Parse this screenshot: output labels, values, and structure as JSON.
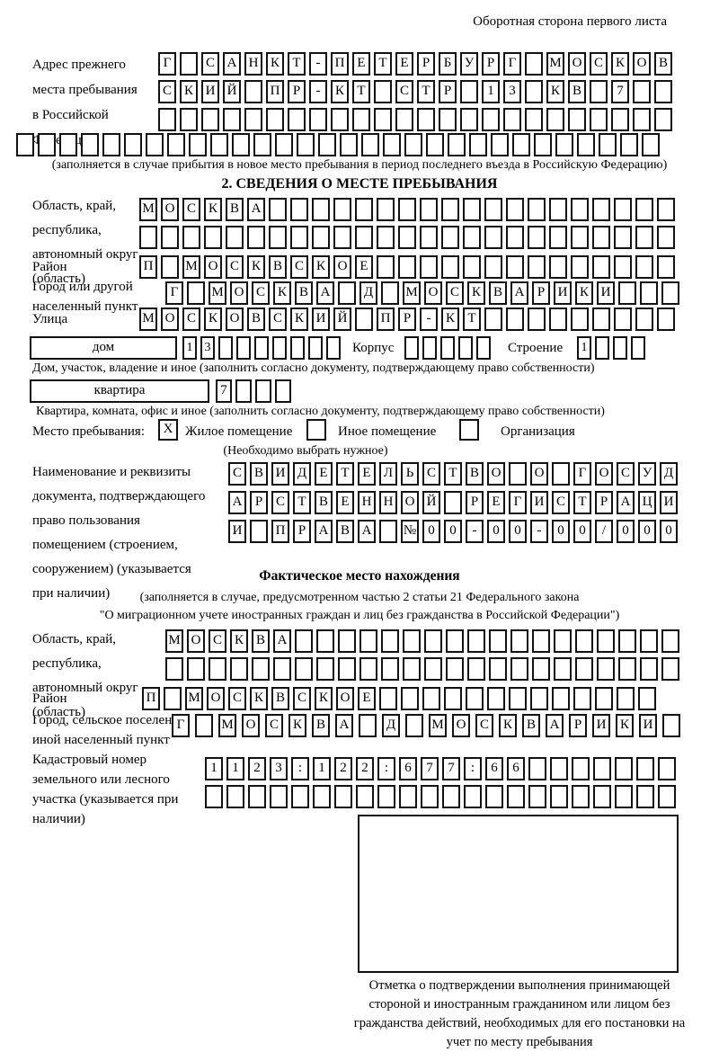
{
  "header": {
    "note": "Оборотная сторона первого листа"
  },
  "prev_address": {
    "label": "Адрес прежнего места пребывания в Российской Федерации",
    "rows": [
      {
        "text": "Г САНКТ-ПЕТЕРБУРГ МОСКОВ",
        "total": 24
      },
      {
        "text": "СКИЙ ПР-КТ СТР 13 КВ 7",
        "total": 24
      },
      {
        "text": "",
        "total": 24
      },
      {
        "text": "",
        "total": 30
      }
    ],
    "note": "(заполняется в случае прибытия в новое место пребывания в период последнего въезда в Российскую Федерацию)"
  },
  "section2": {
    "title": "2. СВЕДЕНИЯ О МЕСТЕ ПРЕБЫВАНИЯ",
    "region": {
      "label": "Область, край, республика, автономный округ (область)",
      "rows": [
        {
          "text": "МОСКВА",
          "total": 25
        },
        {
          "text": "",
          "total": 25
        }
      ]
    },
    "raion": {
      "label": "Район",
      "row": {
        "text": "П МОСКВСКОЕ",
        "total": 25
      }
    },
    "gorod": {
      "label": "Город или другой населенный пункт",
      "row": {
        "text": "Г МОСКВА Д МОСКВАРИКИ",
        "total": 24
      }
    },
    "ulitsa": {
      "label": "Улица",
      "row": {
        "text": "МОСКОВСКИЙ ПР-КТ",
        "total": 25
      }
    },
    "house": {
      "type_label": "дом",
      "number": {
        "text": "13",
        "total": 9
      },
      "korpus_label": "Корпус",
      "korpus": {
        "text": "",
        "total": 5
      },
      "stroenie_label": "Строение",
      "stroenie": {
        "text": "1",
        "total": 4
      },
      "caption": "Дом, участок, владение и иное (заполнить согласно документу, подтверждающему право собственности)"
    },
    "flat": {
      "type_label": "квартира",
      "number": {
        "text": "7",
        "total": 4
      },
      "caption": "Квартира, комната, офис и иное (заполнить согласно документу, подтверждающему право собственности)"
    },
    "stay_type": {
      "label": "Место пребывания:",
      "options": [
        {
          "label": "Жилое помещение",
          "mark": "X"
        },
        {
          "label": "Иное помещение",
          "mark": ""
        },
        {
          "label": "Организация",
          "mark": ""
        }
      ],
      "note": "(Необходимо выбрать нужное)"
    },
    "document": {
      "label": "Наименование и реквизиты документа, подтверждающего право пользования помещением (строением, сооружением) (указывается при наличии)",
      "rows": [
        {
          "text": "СВИДЕТЕЛЬСТВО О ГОСУД",
          "total": 21
        },
        {
          "text": "АРСТВЕННОЙ РЕГИСТРАЦИ",
          "total": 21
        },
        {
          "text": "И ПРАВА №00-00-00/000",
          "total": 21
        }
      ]
    }
  },
  "fact_location": {
    "title": "Фактическое место нахождения",
    "note1": "(заполняется в случае, предусмотренном частью 2 статьи 21 Федерального закона",
    "note2": "\"О миграционном учете иностранных граждан и лиц без гражданства в Российской Федерации\")",
    "region": {
      "label": "Область, край, республика, автономный округ (область)",
      "rows": [
        {
          "text": "МОСКВА",
          "total": 24
        },
        {
          "text": "",
          "total": 24
        }
      ]
    },
    "raion": {
      "label": "Район",
      "row": {
        "text": "П МОСКВСКОЕ",
        "total": 24
      }
    },
    "gorod": {
      "label": "Город, сельское поселение, иной населенный пункт",
      "row": {
        "text": "Г МОСКВА Д МОСКВАРИКИ",
        "total": 22
      }
    },
    "kadastr": {
      "label": "Кадастровый номер земельного или лесного участка (указывается при наличии)",
      "rows": [
        {
          "text": "1123:122:677:66",
          "total": 22
        },
        {
          "text": "",
          "total": 22
        }
      ]
    },
    "mark_caption": "Отметка о подтверждении выполнения принимающей стороной и иностранным гражданином или лицом без гражданства действий, необходимых для его постановки на учет по месту пребывания"
  }
}
